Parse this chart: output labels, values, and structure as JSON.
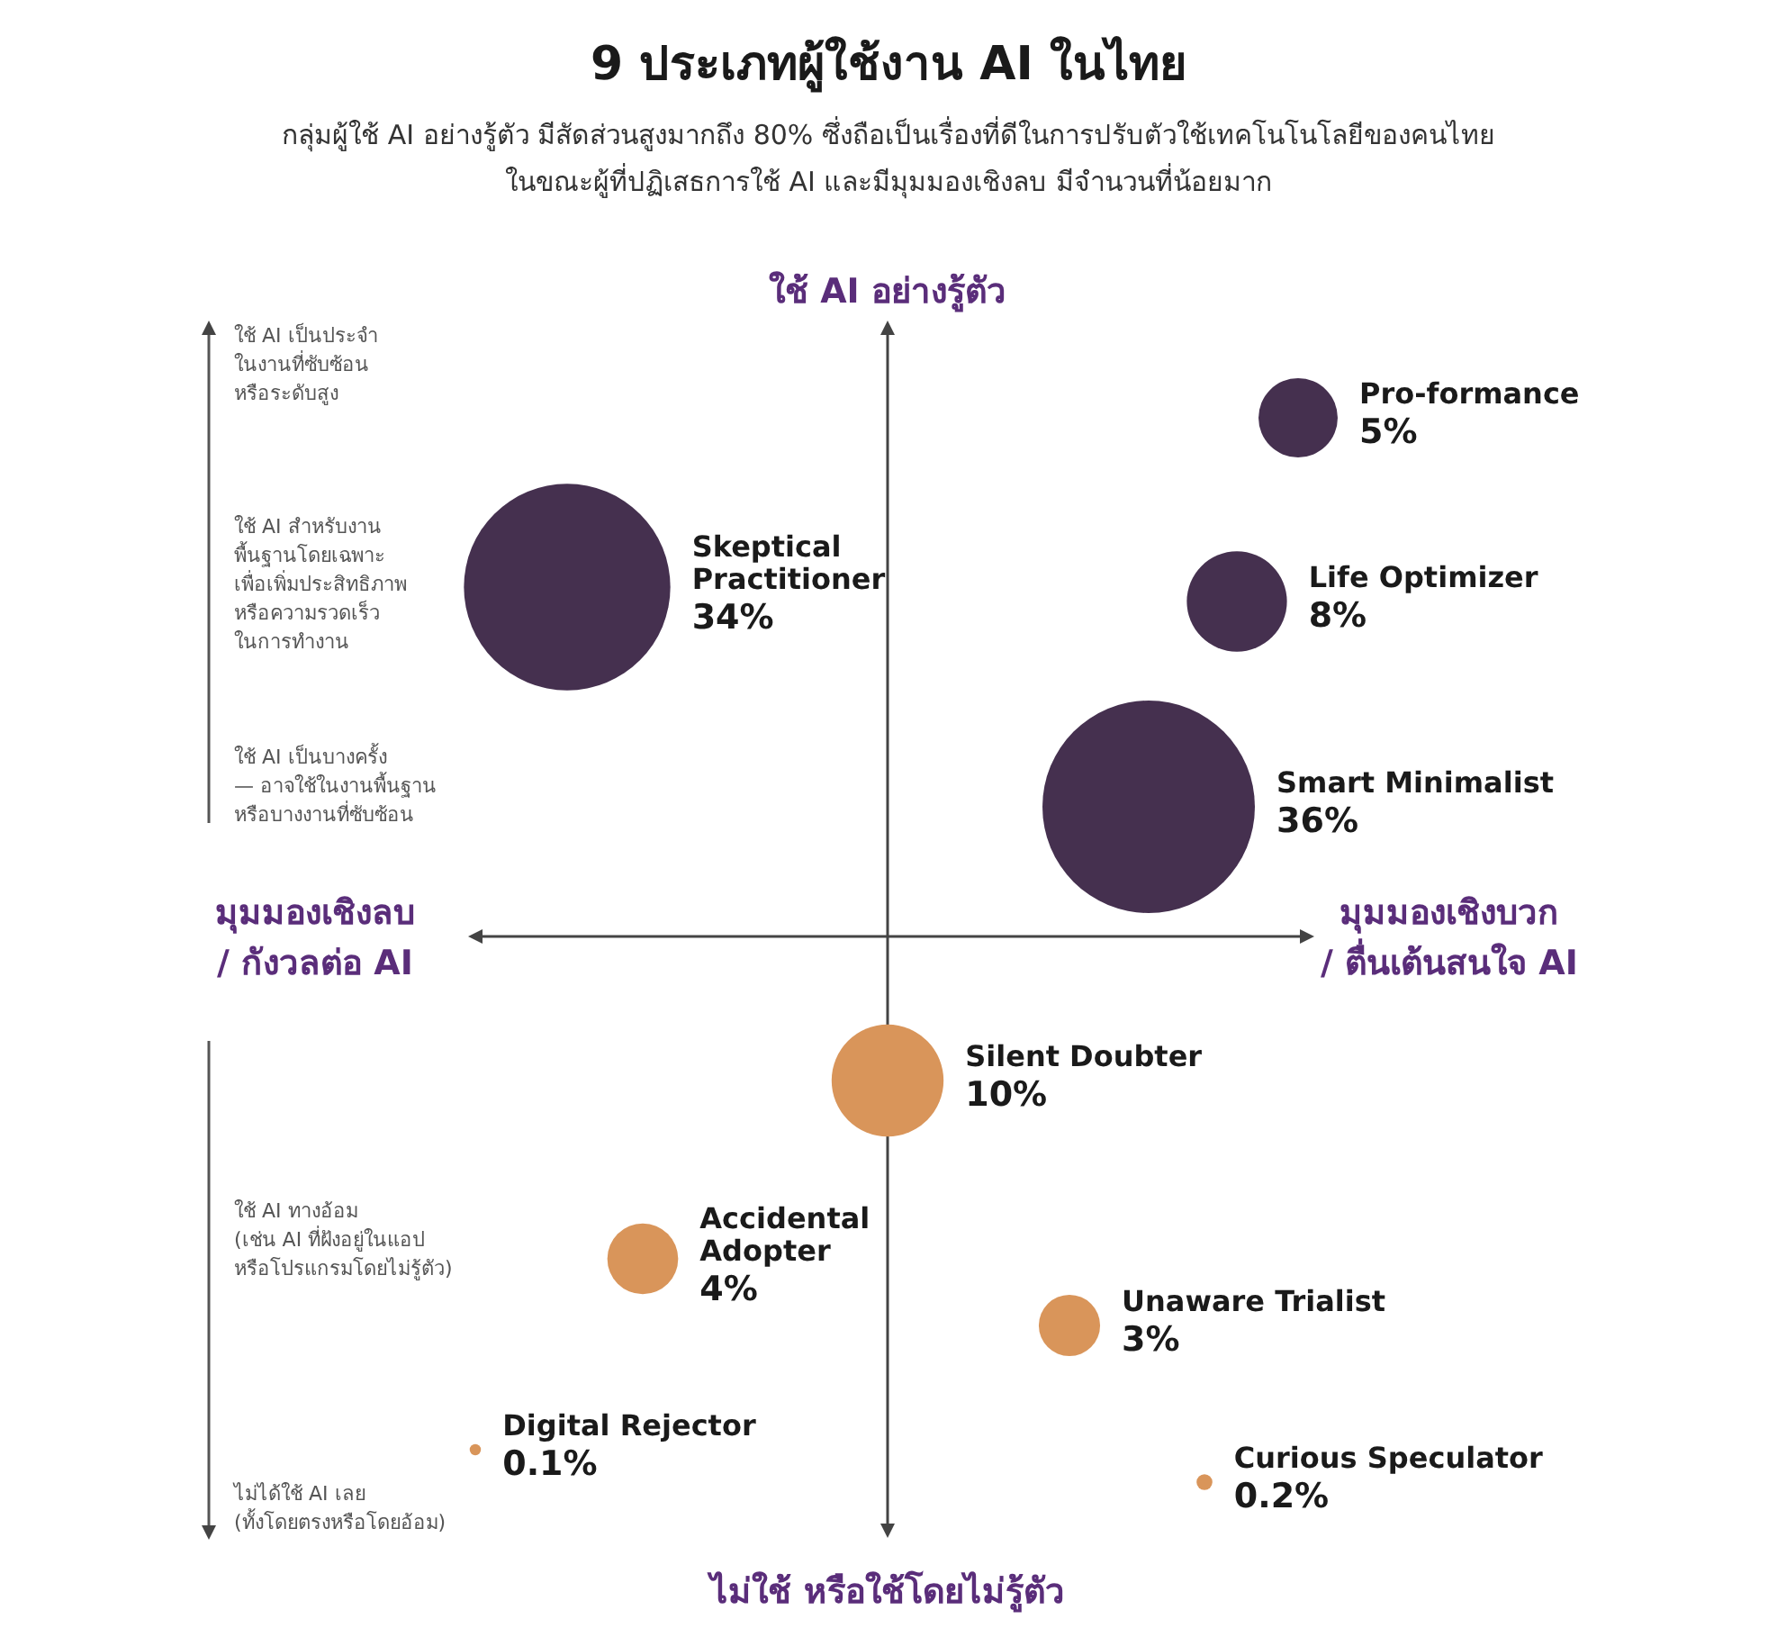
{
  "chart_data": {
    "type": "other",
    "title": "9 ประเภทผู้ใช้งาน AI ในไทย",
    "subtitle": "กลุ่มผู้ใช้ AI อย่างรู้ตัว มีสัดส่วนสูงมากถึง 80% ซึ่งถือเป็นเรื่องที่ดีในการปรับตัวใช้เทคโนโนโลยีของคนไทย\nในขณะผู้ที่ปฏิเสธการใช้ AI และมีมุมมองเชิงลบ มีจำนวนที่น้อยมาก",
    "annotations": [
      "ใช้ AI อย่างรู้ตัว",
      "ไม่ใช้ หรือใช้โดยไม่รู้ตัว",
      "มุมมองเชิงลบ\n/ กังวลต่อ AI",
      "มุมมองเชิงบวก\n/ ตื่นเต้นสนใจ AI",
      "ใช้ AI เป็นประจำ\nในงานที่ซับซ้อน\nหรือระดับสูง",
      "ใช้ AI สำหรับงาน\nพื้นฐานโดยเฉพาะ\nเพื่อเพิ่มประสิทธิภาพ\nหรือความรวดเร็ว\nในการทำงาน",
      "ใช้ AI เป็นบางครั้ง\n— อาจใช้ในงานพื้นฐาน\nหรือบางงานที่ซับซ้อน",
      "ใช้ AI ทางอ้อม\n(เช่น AI ที่ฝังอยู่ในแอป\nหรือโปรแกรมโดยไม่รู้ตัว)",
      "ไม่ได้ใช้ AI เลย\n(ทั้งโดยตรงหรือโดยอ้อม)"
    ],
    "categories": [
      "Pro-formance",
      "Life Optimizer",
      "Smart Minimalist",
      "Skeptical Practitioner",
      "Silent Doubter",
      "Accidental Adopter",
      "Unaware Trialist",
      "Digital Rejector",
      "Curious Speculator"
    ],
    "values": [
      5,
      8,
      36,
      34,
      10,
      4,
      3,
      0.1,
      0.2
    ],
    "value_labels": [
      "5%",
      "8%",
      "36%",
      "34%",
      "10%",
      "4%",
      "3%",
      "0.1%",
      "0.2%"
    ],
    "colors": [
      "#45304f",
      "#45304f",
      "#45304f",
      "#45304f",
      "#d9955a",
      "#d9955a",
      "#d9955a",
      "#d9955a",
      "#d9955a"
    ]
  }
}
